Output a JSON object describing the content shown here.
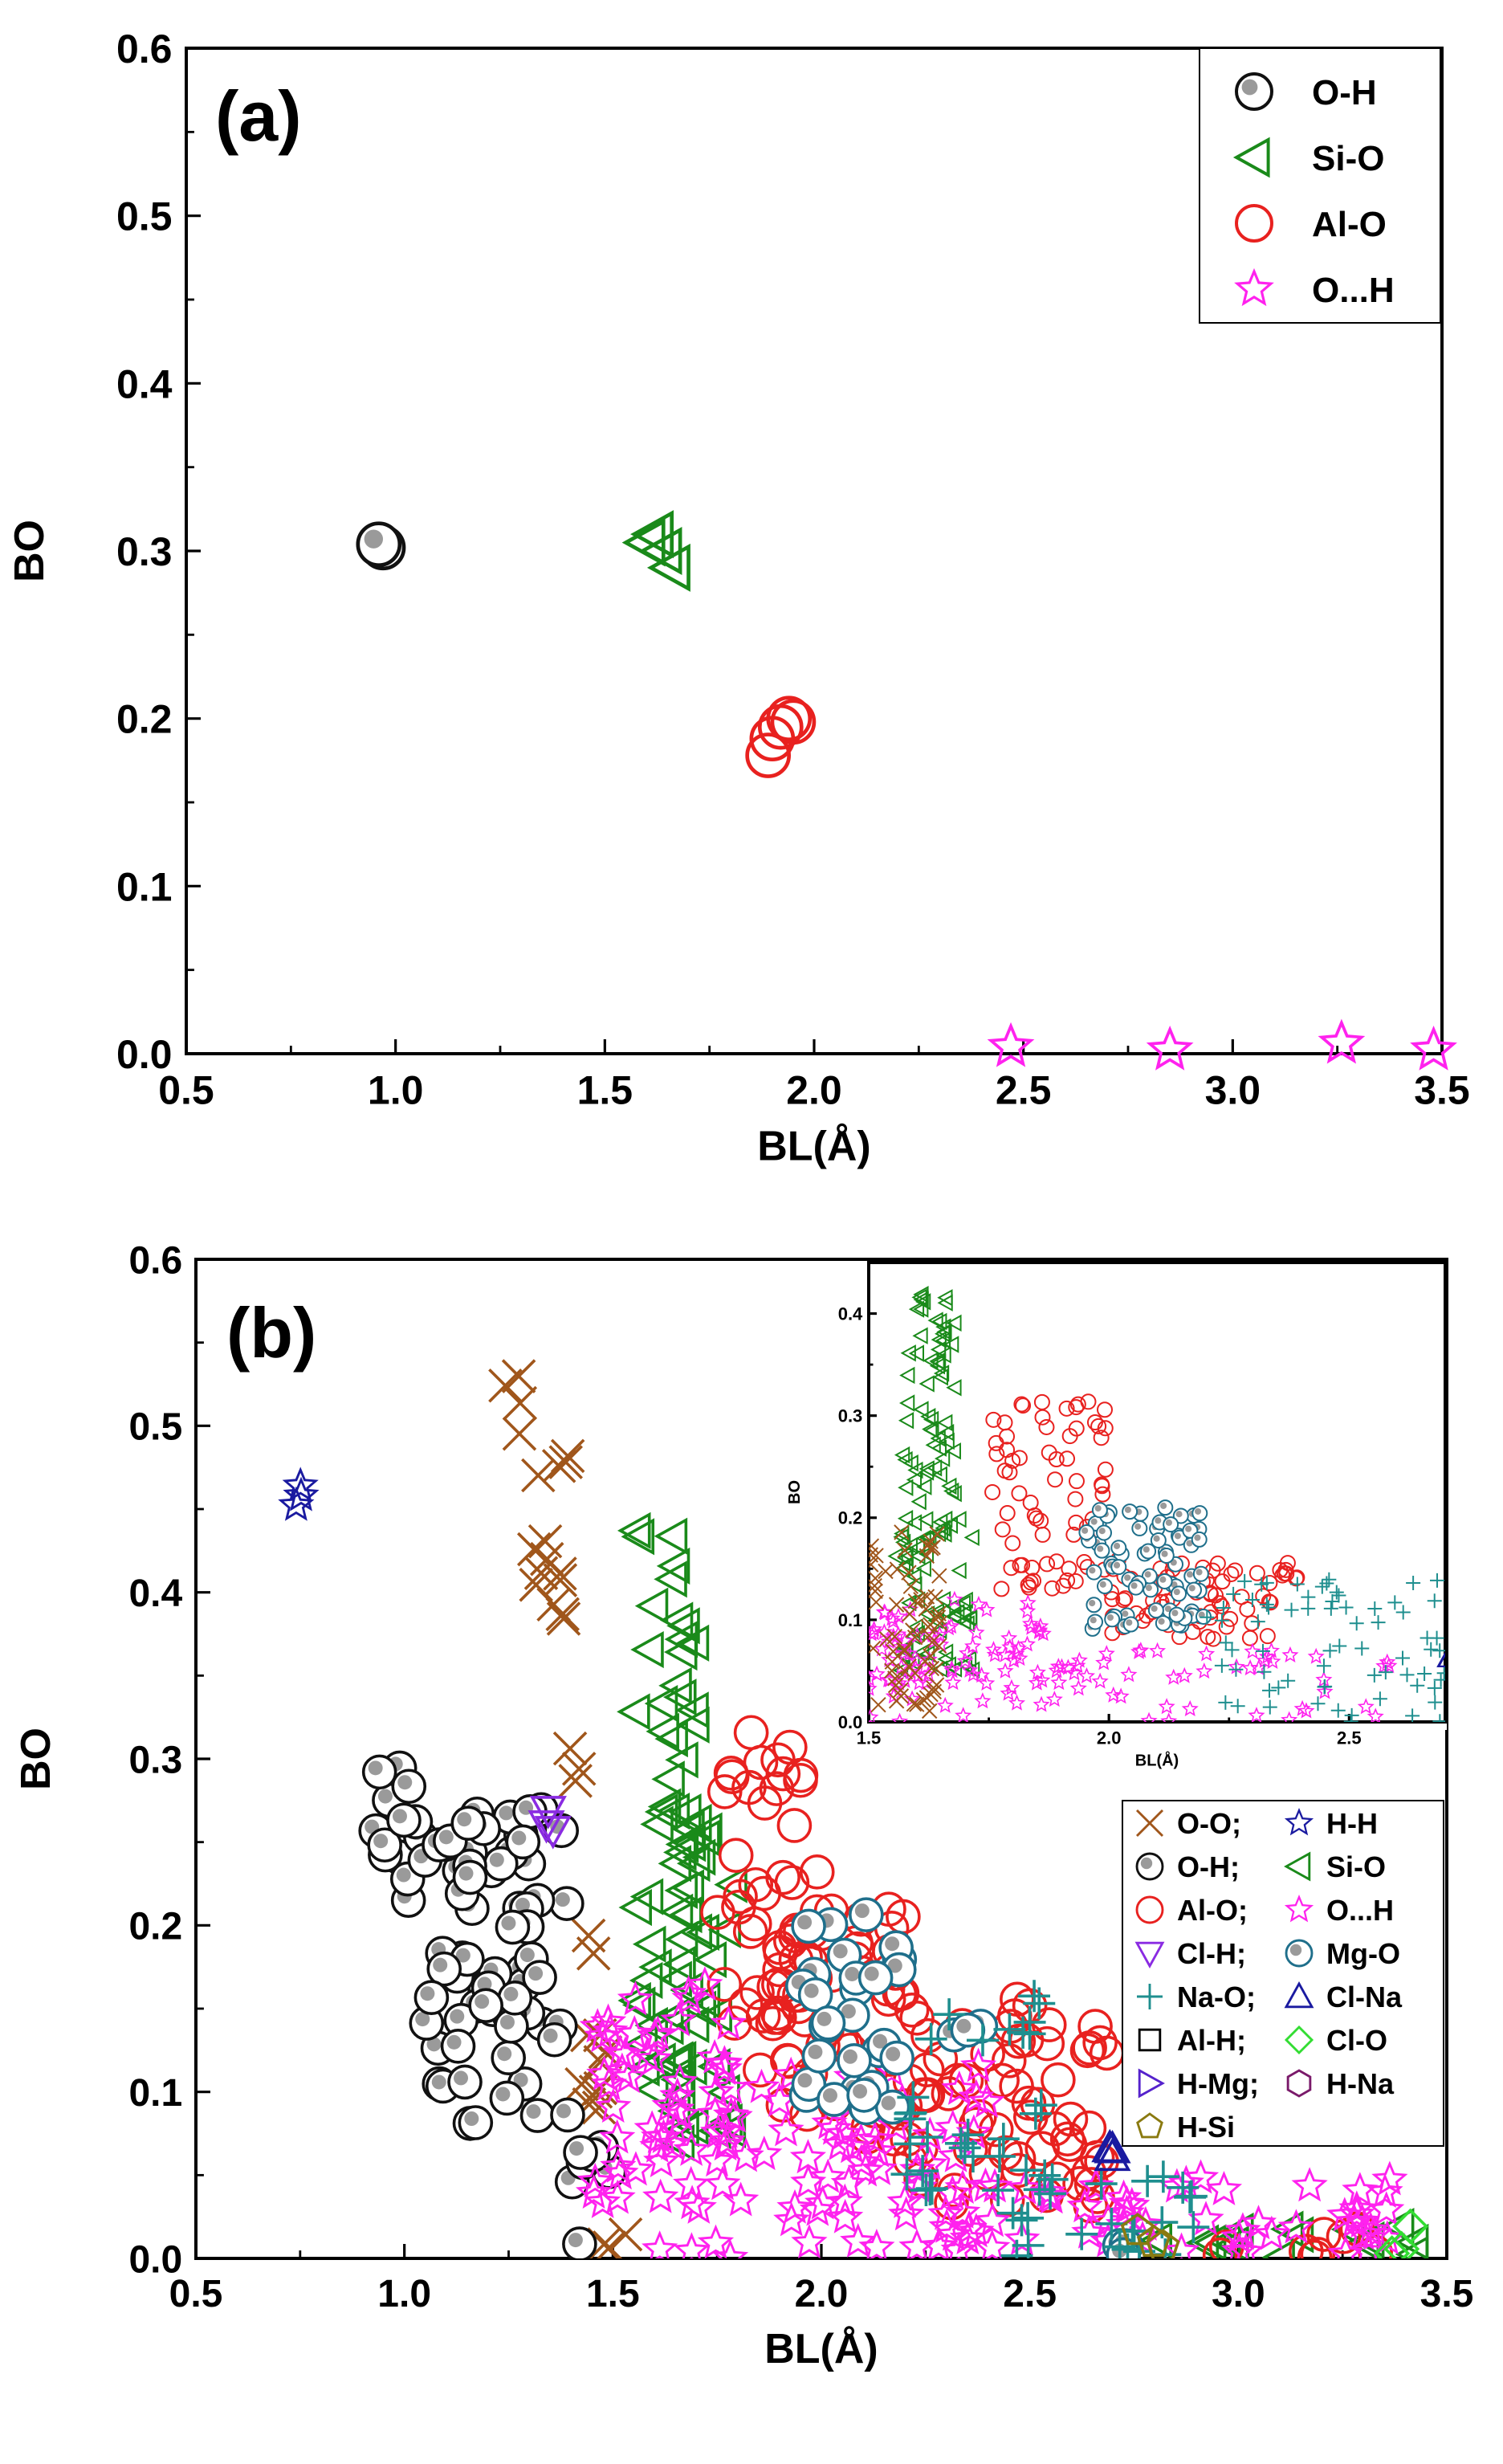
{
  "colors": {
    "o_h": "#111111",
    "si_o": "#1a8a1a",
    "al_o": "#e8211f",
    "o_dot_h": "#ff22ee",
    "o_o": "#a0561b",
    "h_h": "#1a1aa0",
    "cl_h": "#8a2be2",
    "mg_o": "#1f6f8b",
    "na_o": "#1f8f8f",
    "cl_na": "#1a1aa0",
    "al_h": "#000000",
    "cl_o": "#33dd33",
    "h_mg": "#5522cc",
    "h_na": "#7a1a6a",
    "h_si": "#8a7a10"
  },
  "chart_data": [
    {
      "type": "scatter",
      "panel_label": "(a)",
      "xlabel": "BL(Å)",
      "ylabel": "BO",
      "xlim": [
        0.5,
        3.5
      ],
      "ylim": [
        0.0,
        0.6
      ],
      "x_ticks": [
        "0.5",
        "1.0",
        "1.5",
        "2.0",
        "2.5",
        "3.0",
        "3.5"
      ],
      "y_ticks": [
        "0.0",
        "0.1",
        "0.2",
        "0.3",
        "0.4",
        "0.5",
        "0.6"
      ],
      "legend_position": "top-right",
      "series": [
        {
          "name": "O-H",
          "marker": "ball",
          "color_key": "o_h",
          "points": [
            [
              0.97,
              0.302
            ],
            [
              0.96,
              0.304
            ]
          ]
        },
        {
          "name": "Si-O",
          "marker": "triangle-left",
          "color_key": "si_o",
          "points": [
            [
              1.6,
              0.305
            ],
            [
              1.62,
              0.31
            ],
            [
              1.64,
              0.3
            ],
            [
              1.66,
              0.29
            ]
          ]
        },
        {
          "name": "Al-O",
          "marker": "circle",
          "color_key": "al_o",
          "points": [
            [
              1.89,
              0.178
            ],
            [
              1.9,
              0.188
            ],
            [
              1.92,
              0.195
            ],
            [
              1.94,
              0.2
            ],
            [
              1.95,
              0.198
            ]
          ]
        },
        {
          "name": "O...H",
          "marker": "star",
          "color_key": "o_dot_h",
          "points": [
            [
              2.47,
              0.004
            ],
            [
              2.85,
              0.002
            ],
            [
              3.26,
              0.006
            ],
            [
              3.48,
              0.002
            ]
          ]
        }
      ]
    },
    {
      "type": "scatter",
      "panel_label": "(b)",
      "xlabel": "BL(Å)",
      "ylabel": "BO",
      "xlim": [
        0.5,
        3.5
      ],
      "ylim": [
        0.0,
        0.6
      ],
      "x_ticks": [
        "0.5",
        "1.0",
        "1.5",
        "2.0",
        "2.5",
        "3.0",
        "3.5"
      ],
      "y_ticks": [
        "0.0",
        "0.1",
        "0.2",
        "0.3",
        "0.4",
        "0.5",
        "0.6"
      ],
      "legend_position": "right",
      "legend_entries": [
        "O-O;",
        "H-H",
        "O-H;",
        "Si-O",
        "Al-O;",
        "O...H",
        "Cl-H;",
        "Mg-O",
        "Na-O;",
        "Cl-Na",
        "Al-H;",
        "Cl-O",
        "H-Mg;",
        "H-Na",
        "H-Si"
      ],
      "series": [
        {
          "name": "O-O",
          "marker": "x",
          "color_key": "o_o",
          "clusters": [
            [
              1.23,
              1.3,
              0.48,
              0.53
            ],
            [
              1.3,
              1.4,
              0.36,
              0.5
            ],
            [
              1.38,
              1.42,
              0.28,
              0.31
            ],
            [
              1.4,
              1.5,
              0.09,
              0.2
            ],
            [
              1.45,
              1.55,
              0.0,
              0.03
            ]
          ]
        },
        {
          "name": "H-H",
          "marker": "star",
          "color_key": "h_h",
          "clusters": [
            [
              0.74,
              0.76,
              0.43,
              0.47
            ]
          ]
        },
        {
          "name": "O-H",
          "marker": "ball",
          "color_key": "o_h",
          "clusters": [
            [
              0.93,
              1.05,
              0.18,
              0.3
            ],
            [
              1.05,
              1.4,
              0.08,
              0.27
            ],
            [
              1.4,
              1.5,
              0.0,
              0.07
            ]
          ]
        },
        {
          "name": "Si-O",
          "marker": "triangle-left",
          "color_key": "si_o",
          "clusters": [
            [
              1.55,
              1.7,
              0.1,
              0.44
            ],
            [
              1.65,
              1.8,
              0.06,
              0.27
            ],
            [
              2.7,
              3.45,
              0.0,
              0.02
            ]
          ]
        },
        {
          "name": "Al-O",
          "marker": "circle",
          "color_key": "al_o",
          "clusters": [
            [
              1.75,
              2.0,
              0.14,
              0.32
            ],
            [
              1.85,
              2.2,
              0.07,
              0.21
            ],
            [
              2.2,
              2.7,
              0.03,
              0.16
            ],
            [
              2.95,
              3.4,
              0.0,
              0.02
            ]
          ]
        },
        {
          "name": "O...H",
          "marker": "star",
          "color_key": "o_dot_h",
          "clusters": [
            [
              1.45,
              1.8,
              0.03,
              0.17
            ],
            [
              1.6,
              2.4,
              0.0,
              0.12
            ],
            [
              2.2,
              3.4,
              0.0,
              0.05
            ]
          ]
        },
        {
          "name": "Cl-H",
          "marker": "triangle-down",
          "color_key": "cl_h",
          "clusters": [
            [
              1.34,
              1.36,
              0.25,
              0.27
            ]
          ]
        },
        {
          "name": "Mg-O",
          "marker": "ball",
          "color_key": "mg_o",
          "clusters": [
            [
              1.95,
              2.2,
              0.09,
              0.21
            ],
            [
              2.3,
              2.4,
              0.13,
              0.14
            ],
            [
              2.7,
              2.75,
              0.0,
              0.01
            ]
          ]
        },
        {
          "name": "Na-O",
          "marker": "plus",
          "color_key": "na_o",
          "clusters": [
            [
              2.25,
              2.55,
              0.13,
              0.16
            ],
            [
              2.2,
              2.55,
              0.04,
              0.1
            ],
            [
              2.4,
              2.9,
              0.0,
              0.05
            ]
          ]
        },
        {
          "name": "Cl-Na",
          "marker": "triangle-up",
          "color_key": "cl_na",
          "clusters": [
            [
              2.69,
              2.71,
              0.06,
              0.07
            ]
          ]
        },
        {
          "name": "Cl-O",
          "marker": "diamond",
          "color_key": "cl_o",
          "clusters": [
            [
              3.35,
              3.45,
              0.0,
              0.02
            ]
          ]
        },
        {
          "name": "H-Si",
          "marker": "pentagon",
          "color_key": "h_si",
          "clusters": [
            [
              2.75,
              2.82,
              0.0,
              0.02
            ]
          ]
        }
      ],
      "inset": {
        "xlabel": "BL(Å)",
        "ylabel": "BO",
        "xlim": [
          1.5,
          2.7
        ],
        "ylim": [
          0.0,
          0.45
        ],
        "x_ticks": [
          "1.5",
          "2.0",
          "2.5"
        ],
        "y_ticks": [
          "0.0",
          "0.1",
          "0.2",
          "0.3",
          "0.4"
        ],
        "series": [
          {
            "name": "Si-O",
            "marker": "triangle-left",
            "color_key": "si_o",
            "clusters": [
              [
                1.57,
                1.68,
                0.18,
                0.44
              ],
              [
                1.55,
                1.72,
                0.05,
                0.2
              ]
            ]
          },
          {
            "name": "Al-O",
            "marker": "circle",
            "color_key": "al_o",
            "clusters": [
              [
                1.75,
                2.0,
                0.13,
                0.32
              ],
              [
                2.0,
                2.4,
                0.08,
                0.16
              ]
            ]
          },
          {
            "name": "O...H",
            "marker": "star",
            "color_key": "o_dot_h",
            "clusters": [
              [
                1.5,
                1.9,
                0.03,
                0.12
              ],
              [
                1.5,
                2.6,
                0.0,
                0.07
              ]
            ]
          },
          {
            "name": "Mg-O",
            "marker": "ball",
            "color_key": "mg_o",
            "clusters": [
              [
                1.95,
                2.2,
                0.09,
                0.21
              ]
            ]
          },
          {
            "name": "Na-O",
            "marker": "plus",
            "color_key": "na_o",
            "clusters": [
              [
                2.2,
                2.7,
                0.0,
                0.14
              ]
            ]
          },
          {
            "name": "O-O",
            "marker": "x",
            "color_key": "o_o",
            "clusters": [
              [
                1.5,
                1.65,
                0.0,
                0.19
              ]
            ]
          },
          {
            "name": "Cl-Na",
            "marker": "triangle-up",
            "color_key": "cl_na",
            "clusters": [
              [
                2.69,
                2.71,
                0.06,
                0.06
              ]
            ]
          }
        ]
      }
    }
  ]
}
